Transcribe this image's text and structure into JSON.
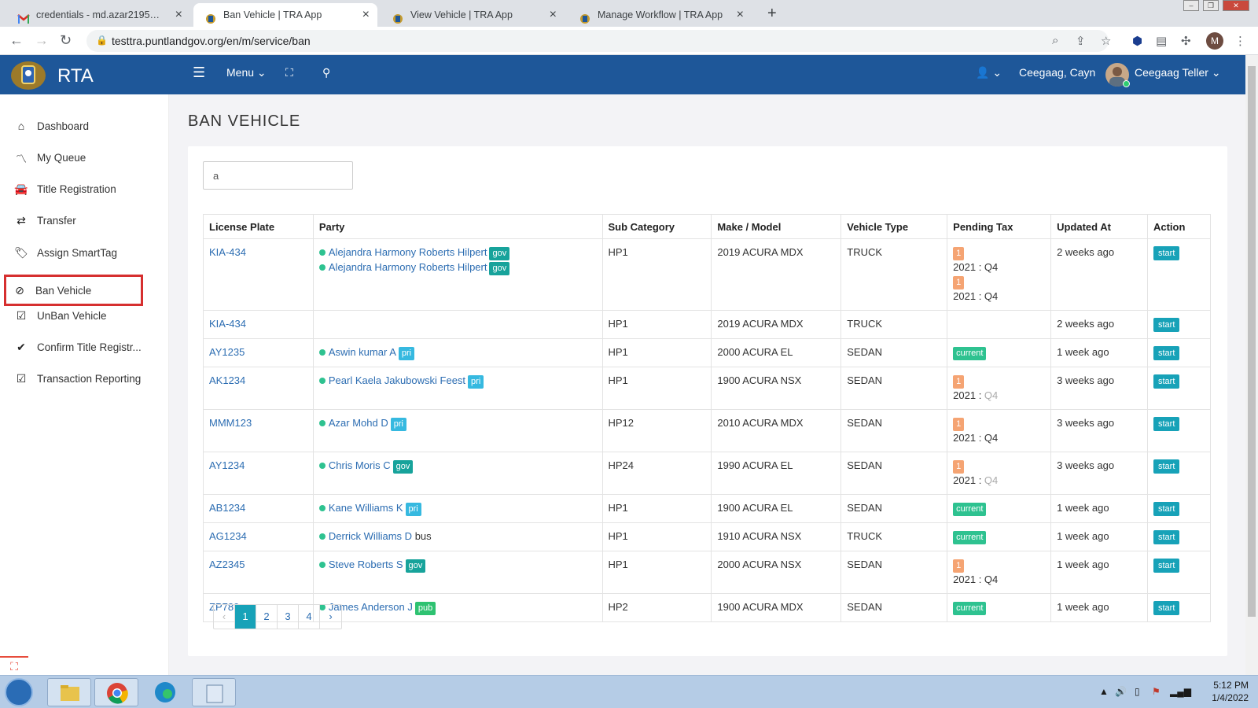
{
  "browser": {
    "tabs": [
      {
        "label": "credentials - md.azar2195@gmail",
        "active": false
      },
      {
        "label": "Ban Vehicle | TRA App",
        "active": true
      },
      {
        "label": "View Vehicle | TRA App",
        "active": false
      },
      {
        "label": "Manage Workflow | TRA App",
        "active": false
      }
    ],
    "url": "testtra.puntlandgov.org/en/m/service/ban",
    "profile_initial": "M"
  },
  "header": {
    "brand": "RTA",
    "menu_label": "Menu",
    "user_location": "Ceegaag, Cayn",
    "user_name": "Ceegaag Teller",
    "color": "#1e5799"
  },
  "sidebar": {
    "items": [
      {
        "label": "Dashboard",
        "icon": "home-icon"
      },
      {
        "label": "My Queue",
        "icon": "line-chart-icon"
      },
      {
        "label": "Title Registration",
        "icon": "car-icon"
      },
      {
        "label": "Transfer",
        "icon": "exchange-icon"
      },
      {
        "label": "Assign SmartTag",
        "icon": "tags-icon"
      },
      {
        "label": "Ban Vehicle",
        "icon": "ban-icon",
        "selected": true
      },
      {
        "label": "UnBan Vehicle",
        "icon": "check-square-icon"
      },
      {
        "label": "Confirm Title Registr...",
        "icon": "check-icon"
      },
      {
        "label": "Transaction Reporting",
        "icon": "check-square-icon"
      }
    ]
  },
  "main": {
    "title": "BAN VEHICLE",
    "search_value": "a",
    "columns": [
      "License Plate",
      "Party",
      "Sub Category",
      "Make / Model",
      "Vehicle Type",
      "Pending Tax",
      "Updated At",
      "Action"
    ],
    "rows": [
      {
        "plate": "KIA-434",
        "party": [
          {
            "name": "Alejandra Harmony Roberts Hilpert",
            "tag": "gov"
          },
          {
            "name": "Alejandra Harmony Roberts Hilpert",
            "tag": "gov"
          }
        ],
        "sub": "HP1",
        "model": "2019 ACURA MDX",
        "type": "TRUCK",
        "tax": [
          {
            "count": "1",
            "period": "2021 : ",
            "q": "Q4",
            "q_muted": false
          },
          {
            "count": "1",
            "period": "2021 : ",
            "q": "Q4",
            "q_muted": false
          }
        ],
        "updated": "2 weeks ago",
        "action": "start"
      },
      {
        "plate": "KIA-434",
        "party": [],
        "sub": "HP1",
        "model": "2019 ACURA MDX",
        "type": "TRUCK",
        "tax": [],
        "updated": "2 weeks ago",
        "action": "start"
      },
      {
        "plate": "AY1235",
        "party": [
          {
            "name": "Aswin kumar A",
            "tag": "pri"
          }
        ],
        "sub": "HP1",
        "model": "2000 ACURA EL",
        "type": "SEDAN",
        "tax_status": "current",
        "updated": "1 week ago",
        "action": "start"
      },
      {
        "plate": "AK1234",
        "party": [
          {
            "name": "Pearl Kaela Jakubowski Feest",
            "tag": "pri"
          }
        ],
        "sub": "HP1",
        "model": "1900 ACURA NSX",
        "type": "SEDAN",
        "tax": [
          {
            "count": "1",
            "period": "2021 : ",
            "q": "Q4",
            "q_muted": true
          }
        ],
        "updated": "3 weeks ago",
        "action": "start"
      },
      {
        "plate": "MMM123",
        "party": [
          {
            "name": "Azar Mohd D",
            "tag": "pri"
          }
        ],
        "sub": "HP12",
        "model": "2010 ACURA MDX",
        "type": "SEDAN",
        "tax": [
          {
            "count": "1",
            "period": "2021 : ",
            "q": "Q4",
            "q_muted": false
          }
        ],
        "updated": "3 weeks ago",
        "action": "start"
      },
      {
        "plate": "AY1234",
        "party": [
          {
            "name": "Chris Moris C",
            "tag": "gov"
          }
        ],
        "sub": "HP24",
        "model": "1990 ACURA EL",
        "type": "SEDAN",
        "tax": [
          {
            "count": "1",
            "period": "2021 : ",
            "q": "Q4",
            "q_muted": true
          }
        ],
        "updated": "3 weeks ago",
        "action": "start"
      },
      {
        "plate": "AB1234",
        "party": [
          {
            "name": "Kane Williams K",
            "tag": "pri"
          }
        ],
        "sub": "HP1",
        "model": "1900 ACURA EL",
        "type": "SEDAN",
        "tax_status": "current",
        "updated": "1 week ago",
        "action": "start"
      },
      {
        "plate": "AG1234",
        "party": [
          {
            "name": "Derrick Williams D",
            "tag_text": "bus"
          }
        ],
        "sub": "HP1",
        "model": "1910 ACURA NSX",
        "type": "TRUCK",
        "tax_status": "current",
        "updated": "1 week ago",
        "action": "start"
      },
      {
        "plate": "AZ2345",
        "party": [
          {
            "name": "Steve Roberts S",
            "tag": "gov"
          }
        ],
        "sub": "HP1",
        "model": "2000 ACURA NSX",
        "type": "SEDAN",
        "tax": [
          {
            "count": "1",
            "period": "2021 : ",
            "q": "Q4",
            "q_muted": false
          }
        ],
        "updated": "1 week ago",
        "action": "start"
      },
      {
        "plate": "ZP789",
        "party": [
          {
            "name": "James Anderson J",
            "tag": "pub"
          }
        ],
        "sub": "HP2",
        "model": "1900 ACURA MDX",
        "type": "SEDAN",
        "tax_status": "current",
        "updated": "1 week ago",
        "action": "start"
      }
    ],
    "pagination": {
      "prev": "‹",
      "pages": [
        "1",
        "2",
        "3",
        "4"
      ],
      "current": "1",
      "next": "›"
    }
  },
  "taskbar": {
    "time": "5:12 PM",
    "date": "1/4/2022"
  }
}
